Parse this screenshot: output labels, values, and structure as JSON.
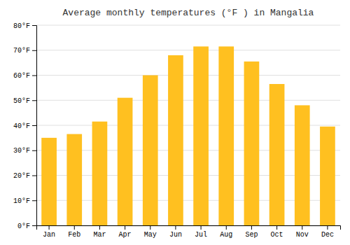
{
  "chart_data": {
    "type": "bar",
    "title": "Average monthly temperatures (°F ) in Mangalia",
    "categories": [
      "Jan",
      "Feb",
      "Mar",
      "Apr",
      "May",
      "Jun",
      "Jul",
      "Aug",
      "Sep",
      "Oct",
      "Nov",
      "Dec"
    ],
    "values": [
      35,
      36.5,
      41.5,
      51,
      60,
      68,
      71.5,
      71.5,
      65.5,
      56.5,
      48,
      39.5
    ],
    "color": "#FFC020",
    "ylim": [
      0,
      80
    ],
    "yticks": [
      {
        "value": 0,
        "label": "0°F"
      },
      {
        "value": 10,
        "label": "10°F"
      },
      {
        "value": 20,
        "label": "20°F"
      },
      {
        "value": 30,
        "label": "30°F"
      },
      {
        "value": 40,
        "label": "40°F"
      },
      {
        "value": 50,
        "label": "50°F"
      },
      {
        "value": 60,
        "label": "60°F"
      },
      {
        "value": 70,
        "label": "70°F"
      },
      {
        "value": 80,
        "label": "80°F"
      }
    ],
    "grid": true
  }
}
